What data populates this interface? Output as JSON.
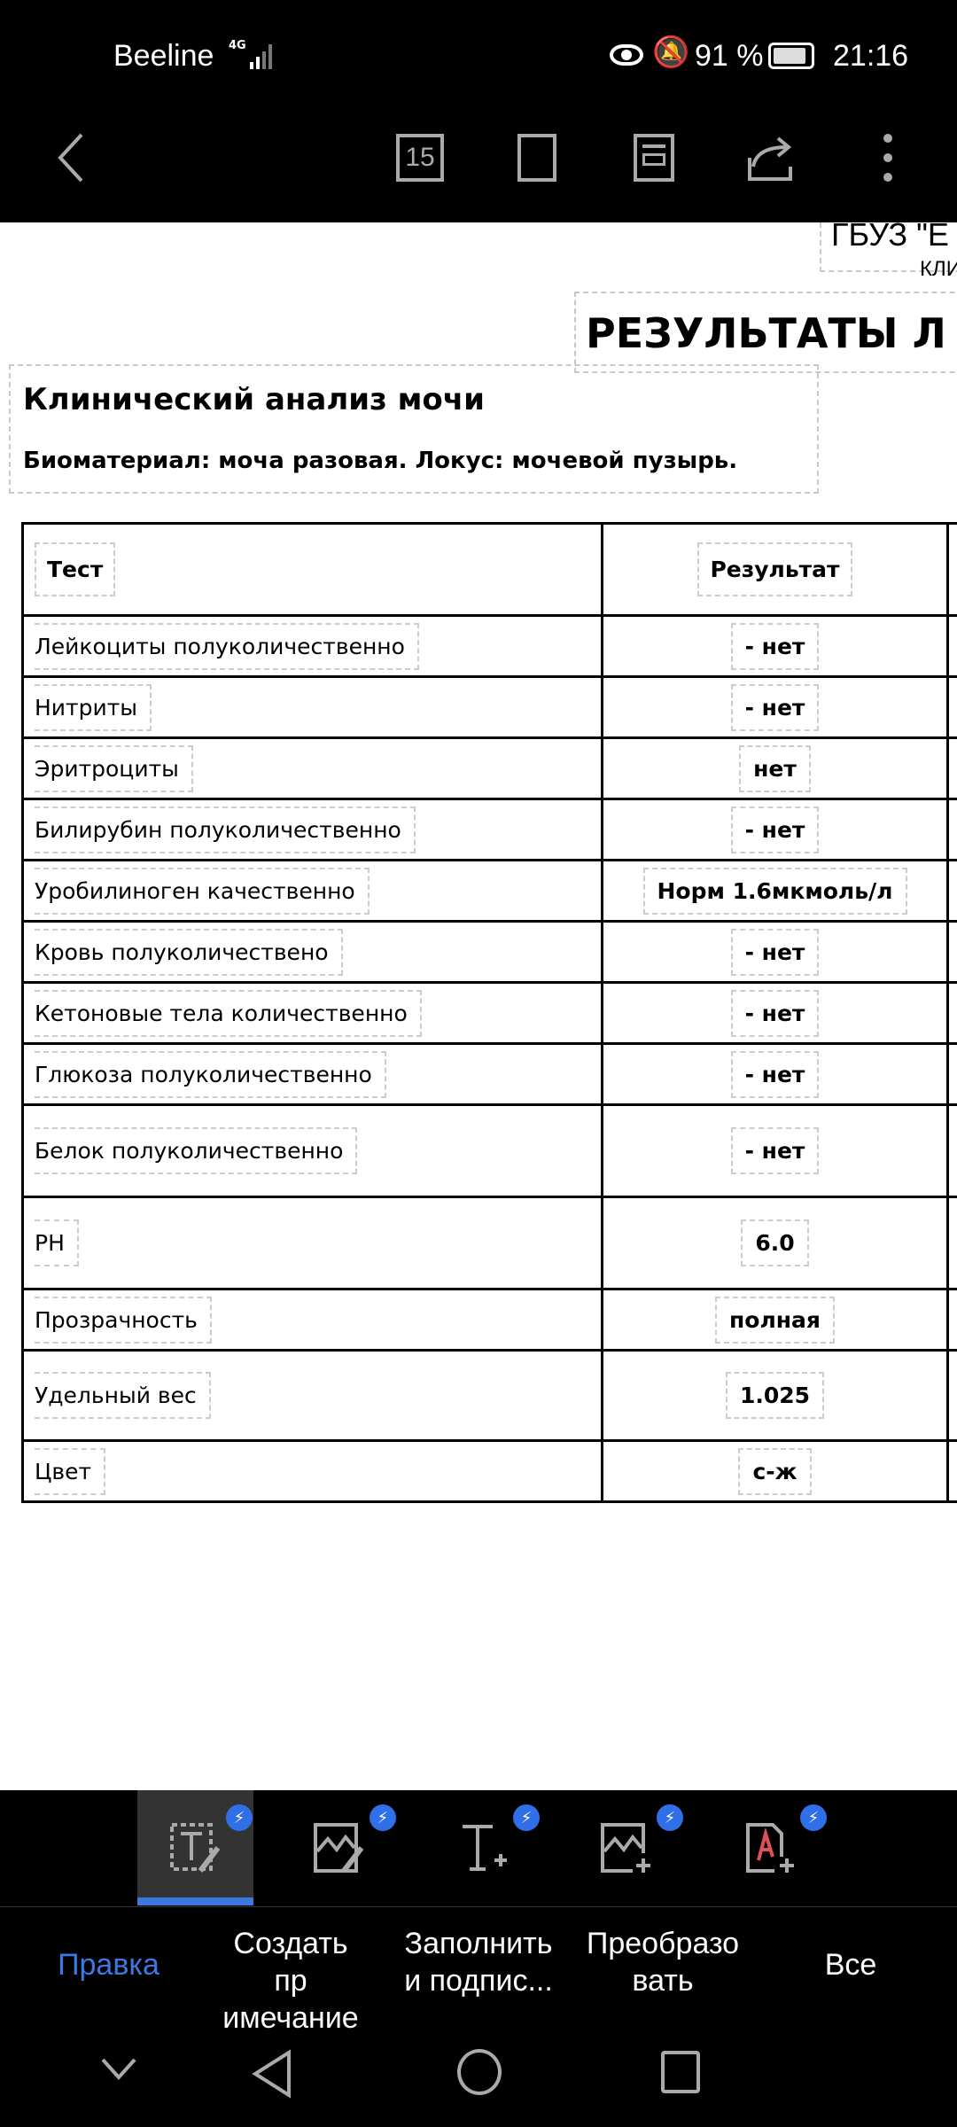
{
  "status_bar": {
    "carrier": "Beeline",
    "network": "4G",
    "battery": "91 %",
    "time": "21:16"
  },
  "toolbar": {
    "page_number": "15",
    "icons": [
      "back-icon",
      "page-number-icon",
      "fullscreen-icon",
      "layout-icon",
      "share-icon",
      "more-icon"
    ]
  },
  "document": {
    "org_fragment": "ГБУЗ \"Е",
    "org_sub_fragment": "КЛИ",
    "results_title_fragment": "РЕЗУЛЬТАТЫ Л",
    "section_title": "Клинический анализ мочи",
    "biomaterial": "Биоматериал: моча разовая. Локус: мочевой пузырь.",
    "table": {
      "headers": [
        "Тест",
        "Результат"
      ],
      "rows": [
        {
          "test": "Лейкоциты полуколичественно",
          "result": "- нет"
        },
        {
          "test": "Нитриты",
          "result": "- нет"
        },
        {
          "test": "Эритроциты",
          "result": "нет"
        },
        {
          "test": "Билирубин полуколичественно",
          "result": "- нет"
        },
        {
          "test": "Уробилиноген качественно",
          "result": "Норм 1.6мкмоль/л"
        },
        {
          "test": "Кровь полуколичествено",
          "result": "- нет"
        },
        {
          "test": "Кетоновые тела количественно",
          "result": "- нет"
        },
        {
          "test": "Глюкоза полуколичественно",
          "result": "- нет"
        },
        {
          "test": "Белок полуколичественно",
          "result": "- нет"
        },
        {
          "test": "PH",
          "result": "6.0"
        },
        {
          "test": "Прозрачность",
          "result": "полная"
        },
        {
          "test": "Удельный вес",
          "result": "1.025"
        },
        {
          "test": "Цвет",
          "result": "с-ж"
        }
      ]
    }
  },
  "bottom_tools": [
    "edit-text-icon",
    "edit-image-icon",
    "add-text-icon",
    "add-image-icon",
    "pdf-sign-icon"
  ],
  "bottom_tabs": [
    {
      "label": "Правка",
      "active": true
    },
    {
      "label": "Создать пр имечание"
    },
    {
      "label": "Заполнить и подпис..."
    },
    {
      "label": "Преобразо вать"
    },
    {
      "label": "Все"
    }
  ],
  "colors": {
    "accent": "#3d78e0",
    "badge": "#2f6fe8"
  }
}
